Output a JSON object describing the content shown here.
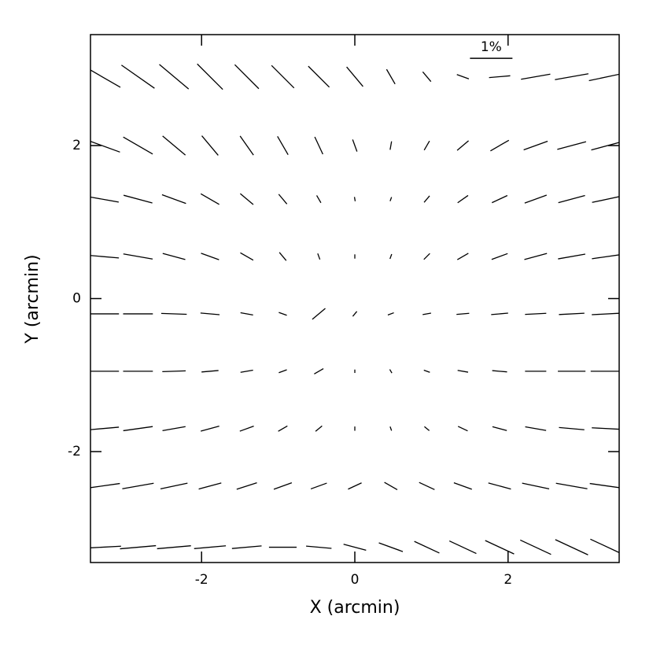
{
  "chart_data": {
    "type": "whisker",
    "xlabel": "X (arcmin)",
    "ylabel": "Y (arcmin)",
    "xlim": [
      -3.45,
      3.45
    ],
    "ylim": [
      -3.45,
      3.45
    ],
    "xticks": [
      -2,
      0,
      2
    ],
    "yticks": [
      -2,
      0,
      2
    ],
    "color": "#000000",
    "scale_bar": {
      "value": 1,
      "label": "1%",
      "x": 1.78,
      "y": 3.14
    },
    "x": [
      -3.3,
      -2.83,
      -2.36,
      -1.89,
      -1.41,
      -0.94,
      -0.47,
      0,
      0.47,
      0.94,
      1.41,
      1.89,
      2.36,
      2.83,
      3.3
    ],
    "series": [
      {
        "y": 2.9,
        "angle": [
          -30,
          -35,
          -40,
          -45,
          -45,
          -45,
          -45,
          -50,
          -60,
          -50,
          -20,
          5,
          10,
          10,
          12
        ],
        "length": [
          1.0,
          0.95,
          0.9,
          0.85,
          0.8,
          0.75,
          0.7,
          0.6,
          0.4,
          0.3,
          0.3,
          0.5,
          0.7,
          0.8,
          0.9
        ]
      },
      {
        "y": 2.0,
        "angle": [
          -20,
          -30,
          -40,
          -50,
          -55,
          -60,
          -65,
          -70,
          80,
          60,
          40,
          30,
          20,
          15,
          15
        ],
        "length": [
          0.9,
          0.8,
          0.7,
          0.6,
          0.55,
          0.5,
          0.45,
          0.3,
          0.2,
          0.25,
          0.35,
          0.5,
          0.6,
          0.7,
          0.8
        ]
      },
      {
        "y": 1.3,
        "angle": [
          -10,
          -15,
          -20,
          -30,
          -40,
          -50,
          -60,
          -80,
          70,
          50,
          35,
          25,
          20,
          15,
          12
        ],
        "length": [
          0.8,
          0.7,
          0.6,
          0.5,
          0.4,
          0.3,
          0.2,
          0.1,
          0.1,
          0.2,
          0.3,
          0.4,
          0.55,
          0.65,
          0.75
        ]
      },
      {
        "y": 0.55,
        "angle": [
          -5,
          -10,
          -15,
          -20,
          -30,
          -50,
          -70,
          90,
          70,
          45,
          30,
          20,
          15,
          10,
          8
        ],
        "length": [
          0.8,
          0.7,
          0.55,
          0.45,
          0.35,
          0.25,
          0.15,
          0.1,
          0.12,
          0.2,
          0.3,
          0.4,
          0.55,
          0.65,
          0.75
        ]
      },
      {
        "y": -0.2,
        "angle": [
          0,
          0,
          -2,
          -5,
          -10,
          -20,
          40,
          50,
          20,
          10,
          5,
          5,
          3,
          3,
          3
        ],
        "length": [
          0.8,
          0.7,
          0.6,
          0.45,
          0.3,
          0.2,
          0.4,
          0.15,
          0.15,
          0.2,
          0.3,
          0.4,
          0.5,
          0.6,
          0.75
        ]
      },
      {
        "y": -0.95,
        "angle": [
          0,
          0,
          2,
          5,
          10,
          20,
          30,
          90,
          -60,
          -20,
          -10,
          -5,
          0,
          0,
          0
        ],
        "length": [
          0.8,
          0.7,
          0.55,
          0.4,
          0.3,
          0.2,
          0.25,
          0.08,
          0.1,
          0.15,
          0.25,
          0.35,
          0.5,
          0.65,
          0.8
        ]
      },
      {
        "y": -1.7,
        "angle": [
          5,
          8,
          10,
          15,
          20,
          30,
          40,
          90,
          -70,
          -40,
          -25,
          -15,
          -10,
          -5,
          -3
        ],
        "length": [
          0.8,
          0.7,
          0.55,
          0.45,
          0.35,
          0.25,
          0.2,
          0.1,
          0.1,
          0.15,
          0.25,
          0.35,
          0.5,
          0.6,
          0.75
        ]
      },
      {
        "y": -2.45,
        "angle": [
          8,
          10,
          12,
          15,
          18,
          20,
          20,
          25,
          -30,
          -25,
          -20,
          -15,
          -12,
          -10,
          -8
        ],
        "length": [
          0.85,
          0.75,
          0.65,
          0.55,
          0.5,
          0.45,
          0.4,
          0.35,
          0.35,
          0.4,
          0.45,
          0.55,
          0.65,
          0.75,
          0.85
        ]
      },
      {
        "y": -3.25,
        "angle": [
          3,
          5,
          5,
          5,
          5,
          0,
          -5,
          -15,
          -20,
          -25,
          -25,
          -25,
          -25,
          -25,
          -25
        ],
        "length": [
          0.9,
          0.85,
          0.8,
          0.75,
          0.7,
          0.65,
          0.6,
          0.55,
          0.6,
          0.65,
          0.7,
          0.75,
          0.8,
          0.85,
          0.9
        ]
      }
    ]
  }
}
